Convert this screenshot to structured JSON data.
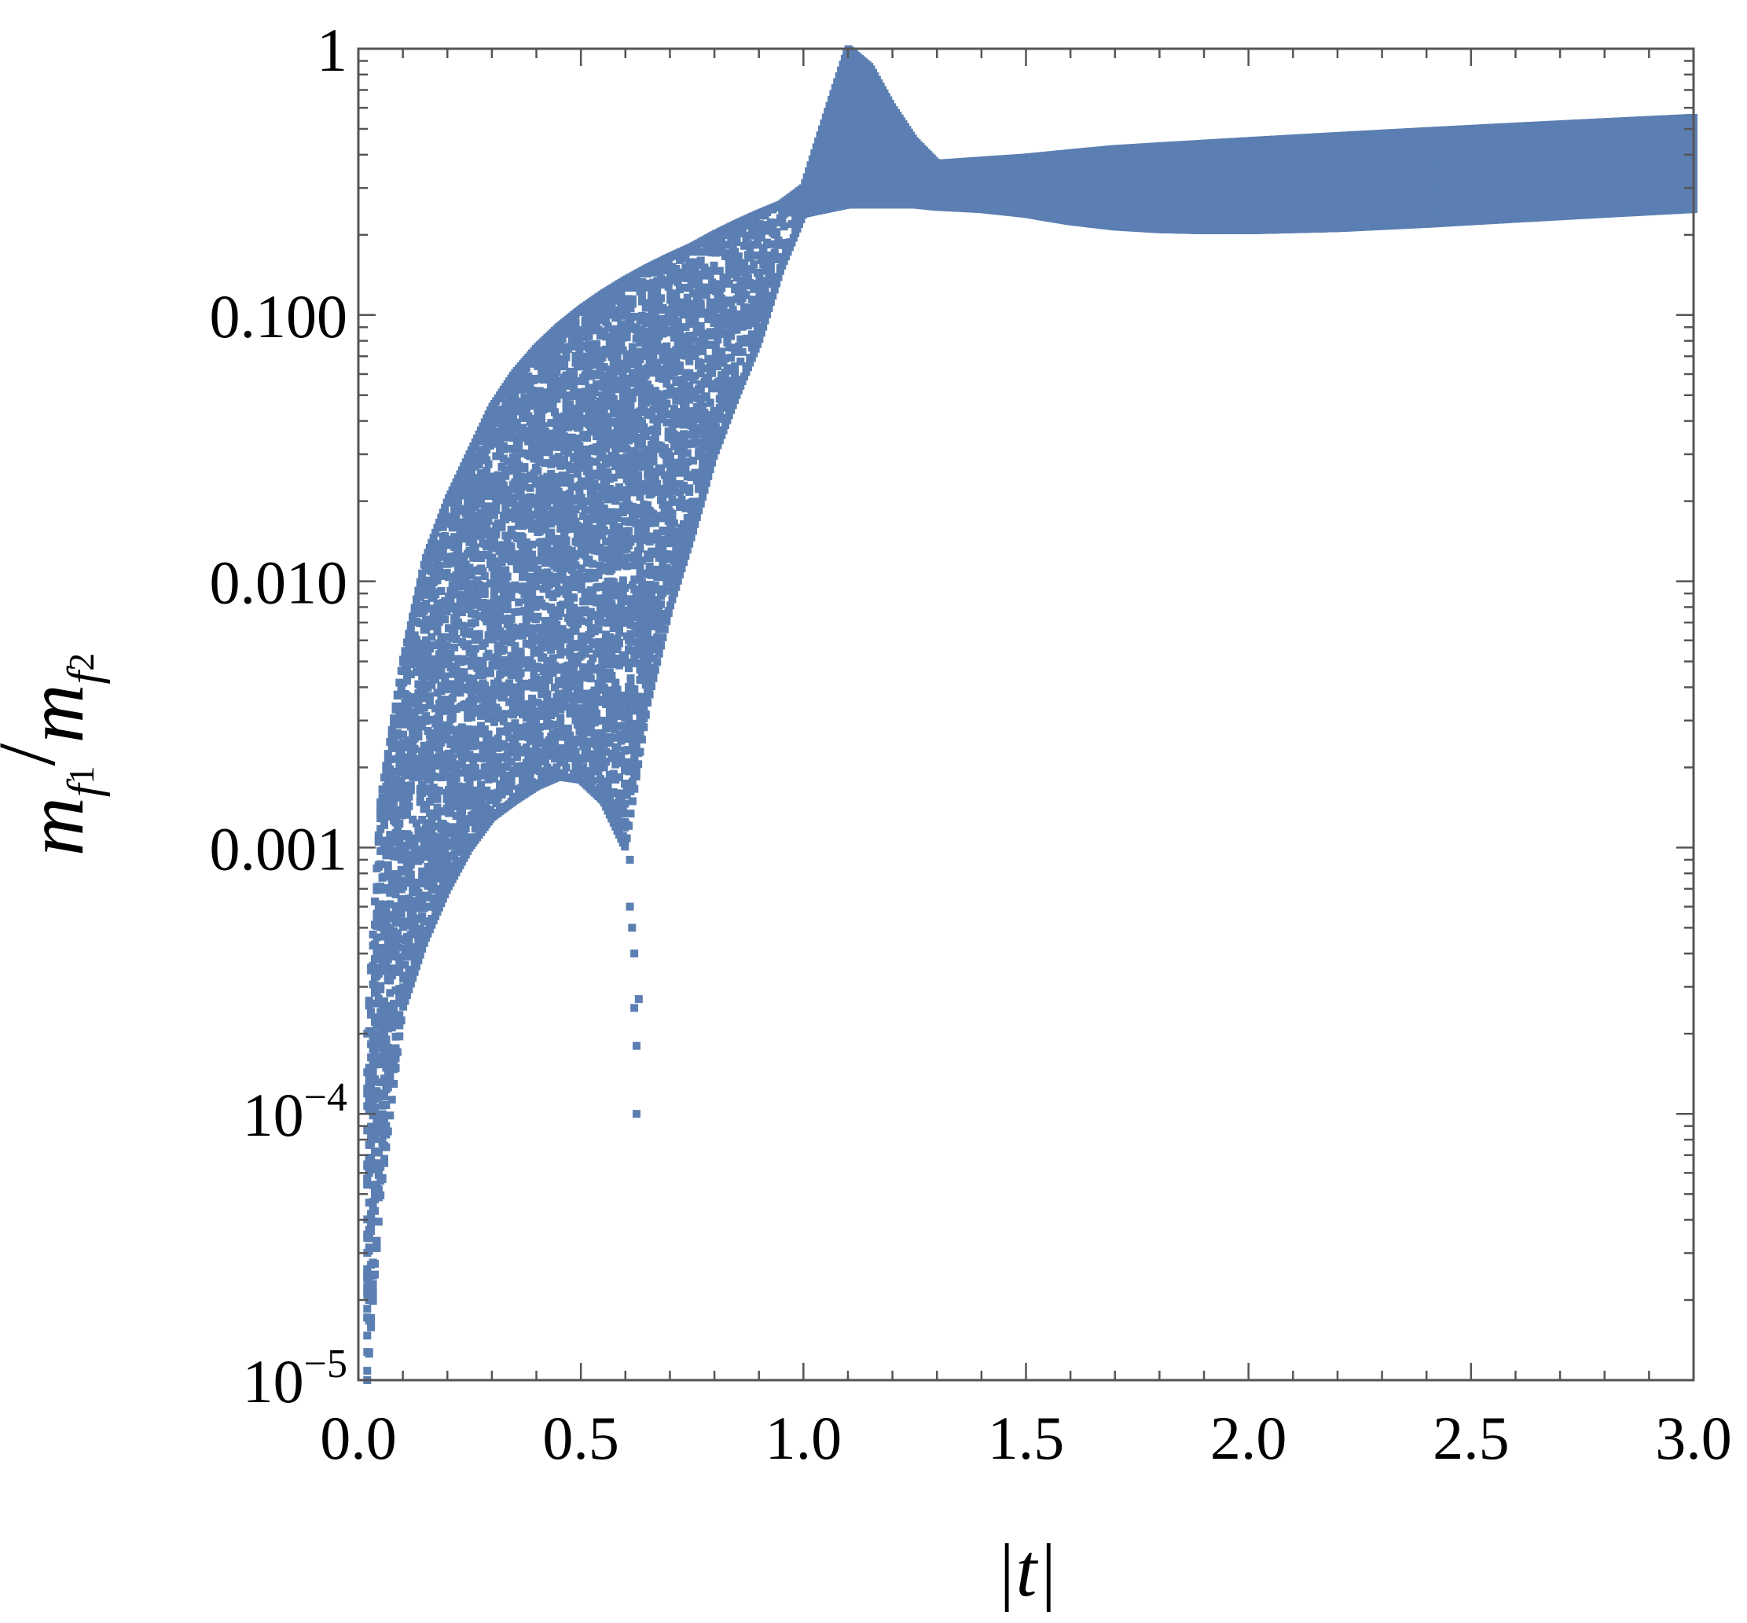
{
  "chart_data": {
    "type": "scatter",
    "title": "",
    "xlabel": "|t|",
    "ylabel": "m_{f_1}/m_{f_2}",
    "x_scale": "linear",
    "y_scale": "log",
    "xlim": [
      0,
      3
    ],
    "ylim": [
      1e-05,
      1
    ],
    "grid": false,
    "legend": "none",
    "marker": "square",
    "color": "#5B7FB2",
    "x_ticks": [
      {
        "value": 0.0,
        "label": "0.0"
      },
      {
        "value": 0.5,
        "label": "0.5"
      },
      {
        "value": 1.0,
        "label": "1.0"
      },
      {
        "value": 1.5,
        "label": "1.5"
      },
      {
        "value": 2.0,
        "label": "2.0"
      },
      {
        "value": 2.5,
        "label": "2.5"
      },
      {
        "value": 3.0,
        "label": "3.0"
      }
    ],
    "y_ticks": [
      {
        "value": 1e-05,
        "base": "10",
        "exp": "−5"
      },
      {
        "value": 0.0001,
        "base": "10",
        "exp": "−4"
      },
      {
        "value": 0.001,
        "base": "0.001",
        "exp": ""
      },
      {
        "value": 0.01,
        "base": "0.010",
        "exp": ""
      },
      {
        "value": 0.1,
        "base": "0.100",
        "exp": ""
      },
      {
        "value": 1,
        "base": "1",
        "exp": ""
      }
    ],
    "band": [
      {
        "x": 0.02,
        "low": 1e-05,
        "high": 0.0002
      },
      {
        "x": 0.05,
        "low": 5e-05,
        "high": 0.0015
      },
      {
        "x": 0.1,
        "low": 0.00025,
        "high": 0.005
      },
      {
        "x": 0.15,
        "low": 0.00045,
        "high": 0.012
      },
      {
        "x": 0.2,
        "low": 0.0007,
        "high": 0.02
      },
      {
        "x": 0.25,
        "low": 0.001,
        "high": 0.03
      },
      {
        "x": 0.3,
        "low": 0.0013,
        "high": 0.045
      },
      {
        "x": 0.35,
        "low": 0.0015,
        "high": 0.06
      },
      {
        "x": 0.4,
        "low": 0.0017,
        "high": 0.075
      },
      {
        "x": 0.45,
        "low": 0.00185,
        "high": 0.09
      },
      {
        "x": 0.5,
        "low": 0.0018,
        "high": 0.105
      },
      {
        "x": 0.55,
        "low": 0.0015,
        "high": 0.12
      },
      {
        "x": 0.6,
        "low": 0.001,
        "high": 0.135
      },
      {
        "x": 0.65,
        "low": 0.0035,
        "high": 0.15
      },
      {
        "x": 0.7,
        "low": 0.008,
        "high": 0.165
      },
      {
        "x": 0.75,
        "low": 0.015,
        "high": 0.18
      },
      {
        "x": 0.8,
        "low": 0.03,
        "high": 0.2
      },
      {
        "x": 0.85,
        "low": 0.05,
        "high": 0.22
      },
      {
        "x": 0.9,
        "low": 0.08,
        "high": 0.24
      },
      {
        "x": 0.95,
        "low": 0.15,
        "high": 0.26
      },
      {
        "x": 1.0,
        "low": 0.24,
        "high": 0.3
      },
      {
        "x": 1.05,
        "low": 0.25,
        "high": 0.55
      },
      {
        "x": 1.1,
        "low": 0.26,
        "high": 1.0
      },
      {
        "x": 1.15,
        "low": 0.26,
        "high": 0.85
      },
      {
        "x": 1.2,
        "low": 0.26,
        "high": 0.6
      },
      {
        "x": 1.25,
        "low": 0.26,
        "high": 0.45
      },
      {
        "x": 1.3,
        "low": 0.255,
        "high": 0.37
      },
      {
        "x": 1.4,
        "low": 0.25,
        "high": 0.38
      },
      {
        "x": 1.5,
        "low": 0.24,
        "high": 0.39
      },
      {
        "x": 1.6,
        "low": 0.225,
        "high": 0.405
      },
      {
        "x": 1.7,
        "low": 0.215,
        "high": 0.42
      },
      {
        "x": 1.8,
        "low": 0.21,
        "high": 0.43
      },
      {
        "x": 1.9,
        "low": 0.208,
        "high": 0.44
      },
      {
        "x": 2.0,
        "low": 0.208,
        "high": 0.45
      },
      {
        "x": 2.2,
        "low": 0.212,
        "high": 0.47
      },
      {
        "x": 2.4,
        "low": 0.22,
        "high": 0.49
      },
      {
        "x": 2.6,
        "low": 0.23,
        "high": 0.51
      },
      {
        "x": 2.8,
        "low": 0.24,
        "high": 0.53
      },
      {
        "x": 3.0,
        "low": 0.25,
        "high": 0.55
      }
    ],
    "outliers": [
      {
        "x": 0.61,
        "y": 0.0009
      },
      {
        "x": 0.61,
        "y": 0.0006
      },
      {
        "x": 0.62,
        "y": 0.0004
      },
      {
        "x": 0.62,
        "y": 0.00025
      },
      {
        "x": 0.625,
        "y": 0.00018
      },
      {
        "x": 0.625,
        "y": 0.0001
      },
      {
        "x": 0.63,
        "y": 0.00027
      },
      {
        "x": 0.615,
        "y": 0.0005
      }
    ]
  }
}
